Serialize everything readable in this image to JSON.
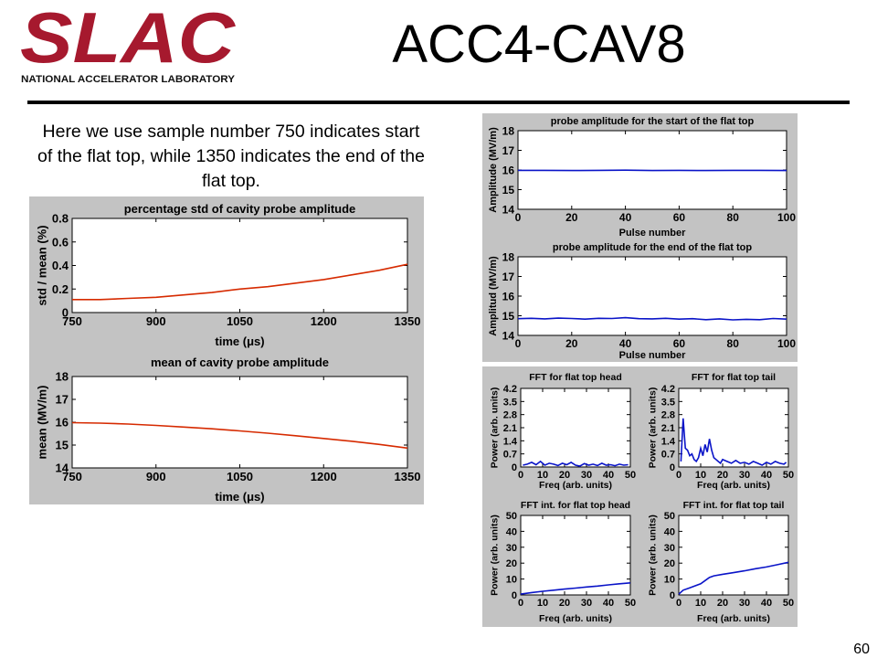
{
  "logo": {
    "wordmark": "SLAC",
    "subtitle": "NATIONAL ACCELERATOR LABORATORY",
    "color": "#a6192e"
  },
  "slide": {
    "title": "ACC4-CAV8",
    "intro": "Here we use sample number 750 indicates start of the flat top, while 1350 indicates the end of the flat top.",
    "page_number": "60"
  },
  "chart_data": [
    {
      "id": "std",
      "type": "line",
      "title": "percentage std of cavity probe amplitude",
      "xlabel": "time (μs)",
      "ylabel": "std / mean (%)",
      "xlim": [
        750,
        1350
      ],
      "ylim": [
        0,
        0.8
      ],
      "xticks": [
        "750",
        "900",
        "1050",
        "1200",
        "1350"
      ],
      "yticks": [
        "0",
        "0.2",
        "0.4",
        "0.6",
        "0.8"
      ],
      "xtick_values": [
        750,
        900,
        1050,
        1200,
        1350
      ],
      "ytick_values": [
        0,
        0.2,
        0.4,
        0.6,
        0.8
      ],
      "grid": false,
      "color": "#d62a00",
      "series": [
        {
          "x": [
            750,
            800,
            850,
            900,
            950,
            1000,
            1050,
            1100,
            1150,
            1200,
            1250,
            1300,
            1350
          ],
          "y": [
            0.11,
            0.11,
            0.12,
            0.13,
            0.15,
            0.17,
            0.2,
            0.22,
            0.25,
            0.28,
            0.32,
            0.36,
            0.41
          ]
        }
      ]
    },
    {
      "id": "mean",
      "type": "line",
      "title": "mean of cavity probe amplitude",
      "xlabel": "time (μs)",
      "ylabel": "mean (MV/m)",
      "xlim": [
        750,
        1350
      ],
      "ylim": [
        14,
        18
      ],
      "xticks": [
        "750",
        "900",
        "1050",
        "1200",
        "1350"
      ],
      "yticks": [
        "14",
        "15",
        "16",
        "17",
        "18"
      ],
      "xtick_values": [
        750,
        900,
        1050,
        1200,
        1350
      ],
      "ytick_values": [
        14,
        15,
        16,
        17,
        18
      ],
      "grid": false,
      "color": "#d62a00",
      "series": [
        {
          "x": [
            750,
            800,
            850,
            900,
            950,
            1000,
            1050,
            1100,
            1150,
            1200,
            1250,
            1300,
            1350
          ],
          "y": [
            15.98,
            15.96,
            15.92,
            15.86,
            15.79,
            15.71,
            15.62,
            15.52,
            15.41,
            15.29,
            15.17,
            15.03,
            14.87
          ]
        }
      ]
    },
    {
      "id": "start",
      "type": "line",
      "title": "probe amplitude for the start of the flat top",
      "xlabel": "Pulse number",
      "ylabel": "Amplitude (MV/m)",
      "xlim": [
        0,
        100
      ],
      "ylim": [
        14,
        18
      ],
      "xticks": [
        "0",
        "20",
        "40",
        "60",
        "80",
        "100"
      ],
      "yticks": [
        "14",
        "15",
        "16",
        "17",
        "18"
      ],
      "xtick_values": [
        0,
        20,
        40,
        60,
        80,
        100
      ],
      "ytick_values": [
        14,
        15,
        16,
        17,
        18
      ],
      "grid": false,
      "color": "#0a14c8",
      "series": [
        {
          "x": [
            0,
            10,
            20,
            30,
            40,
            50,
            60,
            70,
            80,
            90,
            100
          ],
          "y": [
            15.98,
            15.98,
            15.97,
            15.98,
            15.99,
            15.97,
            15.98,
            15.97,
            15.98,
            15.98,
            15.97
          ]
        }
      ]
    },
    {
      "id": "end",
      "type": "line",
      "title": "probe amplitude for the end of the flat top",
      "xlabel": "Pulse number",
      "ylabel": "Amplitud (MV/m)",
      "xlim": [
        0,
        100
      ],
      "ylim": [
        14,
        18
      ],
      "xticks": [
        "0",
        "20",
        "40",
        "60",
        "80",
        "100"
      ],
      "yticks": [
        "14",
        "15",
        "16",
        "17",
        "18"
      ],
      "xtick_values": [
        0,
        20,
        40,
        60,
        80,
        100
      ],
      "ytick_values": [
        14,
        15,
        16,
        17,
        18
      ],
      "grid": false,
      "color": "#0a14c8",
      "series": [
        {
          "x": [
            0,
            5,
            10,
            15,
            20,
            25,
            30,
            35,
            40,
            45,
            50,
            55,
            60,
            65,
            70,
            75,
            80,
            85,
            90,
            95,
            100
          ],
          "y": [
            14.85,
            14.87,
            14.84,
            14.88,
            14.86,
            14.83,
            14.87,
            14.86,
            14.9,
            14.85,
            14.84,
            14.87,
            14.83,
            14.85,
            14.8,
            14.84,
            14.79,
            14.82,
            14.8,
            14.86,
            14.83
          ]
        }
      ]
    },
    {
      "id": "fft-head",
      "type": "line",
      "title": "FFT for flat top head",
      "xlabel": "Freq (arb. units)",
      "ylabel": "Power (arb. units)",
      "xlim": [
        0,
        50
      ],
      "ylim": [
        0,
        4.2
      ],
      "xticks": [
        "0",
        "10",
        "20",
        "30",
        "40",
        "50"
      ],
      "yticks": [
        "0",
        "0.7",
        "1.4",
        "2.1",
        "2.8",
        "3.5",
        "4.2"
      ],
      "xtick_values": [
        0,
        10,
        20,
        30,
        40,
        50
      ],
      "ytick_values": [
        0,
        0.7,
        1.4,
        2.1,
        2.8,
        3.5,
        4.2
      ],
      "grid": false,
      "color": "#0a14c8",
      "series": [
        {
          "x": [
            1,
            3,
            5,
            7,
            9,
            11,
            13,
            15,
            17,
            19,
            21,
            23,
            25,
            27,
            29,
            31,
            33,
            35,
            37,
            39,
            41,
            43,
            45,
            47,
            49
          ],
          "y": [
            0.1,
            0.15,
            0.25,
            0.12,
            0.3,
            0.1,
            0.2,
            0.15,
            0.08,
            0.2,
            0.12,
            0.25,
            0.1,
            0.05,
            0.18,
            0.1,
            0.15,
            0.08,
            0.2,
            0.1,
            0.12,
            0.07,
            0.15,
            0.1,
            0.12
          ]
        }
      ]
    },
    {
      "id": "fft-tail",
      "type": "line",
      "title": "FFT for flat top tail",
      "xlabel": "Freq (arb. units)",
      "ylabel": "Power (arb. units)",
      "xlim": [
        0,
        50
      ],
      "ylim": [
        0,
        4.2
      ],
      "xticks": [
        "0",
        "10",
        "20",
        "30",
        "40",
        "50"
      ],
      "yticks": [
        "0",
        "0.7",
        "1.4",
        "2.1",
        "2.8",
        "3.5",
        "4.2"
      ],
      "xtick_values": [
        0,
        10,
        20,
        30,
        40,
        50
      ],
      "ytick_values": [
        0,
        0.7,
        1.4,
        2.1,
        2.8,
        3.5,
        4.2
      ],
      "grid": false,
      "color": "#0a14c8",
      "series": [
        {
          "x": [
            1,
            2,
            3,
            4,
            5,
            6,
            7,
            8,
            9,
            10,
            11,
            12,
            13,
            14,
            15,
            16,
            17,
            18,
            19,
            20,
            22,
            24,
            26,
            28,
            30,
            32,
            34,
            36,
            38,
            40,
            42,
            44,
            46,
            48,
            49
          ],
          "y": [
            0.3,
            2.6,
            1.0,
            0.9,
            0.6,
            0.7,
            0.4,
            0.3,
            0.5,
            1.0,
            0.6,
            1.2,
            0.8,
            1.5,
            0.9,
            0.5,
            0.4,
            0.3,
            0.2,
            0.4,
            0.3,
            0.2,
            0.35,
            0.2,
            0.25,
            0.15,
            0.3,
            0.2,
            0.1,
            0.25,
            0.15,
            0.3,
            0.2,
            0.15,
            0.25
          ]
        }
      ]
    },
    {
      "id": "int-head",
      "type": "line",
      "title": "FFT int. for flat top head",
      "xlabel": "Freq (arb. units)",
      "ylabel": "Power (arb. units)",
      "xlim": [
        0,
        50
      ],
      "ylim": [
        0,
        50
      ],
      "xticks": [
        "0",
        "10",
        "20",
        "30",
        "40",
        "50"
      ],
      "yticks": [
        "0",
        "10",
        "20",
        "30",
        "40",
        "50"
      ],
      "xtick_values": [
        0,
        10,
        20,
        30,
        40,
        50
      ],
      "ytick_values": [
        0,
        10,
        20,
        30,
        40,
        50
      ],
      "grid": false,
      "color": "#0a14c8",
      "series": [
        {
          "x": [
            0,
            5,
            10,
            15,
            20,
            25,
            30,
            35,
            40,
            45,
            50
          ],
          "y": [
            0.5,
            1.5,
            2.3,
            3.0,
            3.7,
            4.3,
            5.0,
            5.6,
            6.3,
            7.0,
            7.6
          ]
        }
      ]
    },
    {
      "id": "int-tail",
      "type": "line",
      "title": "FFT int. for flat top tail",
      "xlabel": "Freq (arb. units)",
      "ylabel": "Power (arb. units)",
      "xlim": [
        0,
        50
      ],
      "ylim": [
        0,
        50
      ],
      "xticks": [
        "0",
        "10",
        "20",
        "30",
        "40",
        "50"
      ],
      "yticks": [
        "0",
        "10",
        "20",
        "30",
        "40",
        "50"
      ],
      "xtick_values": [
        0,
        10,
        20,
        30,
        40,
        50
      ],
      "ytick_values": [
        0,
        10,
        20,
        30,
        40,
        50
      ],
      "grid": false,
      "color": "#0a14c8",
      "series": [
        {
          "x": [
            0,
            2,
            5,
            10,
            12,
            14,
            16,
            20,
            25,
            30,
            35,
            40,
            45,
            50
          ],
          "y": [
            0.5,
            3.0,
            4.5,
            7.0,
            9.0,
            11.0,
            12.0,
            13.0,
            14.0,
            15.2,
            16.5,
            17.6,
            19.0,
            20.5
          ]
        }
      ]
    }
  ]
}
